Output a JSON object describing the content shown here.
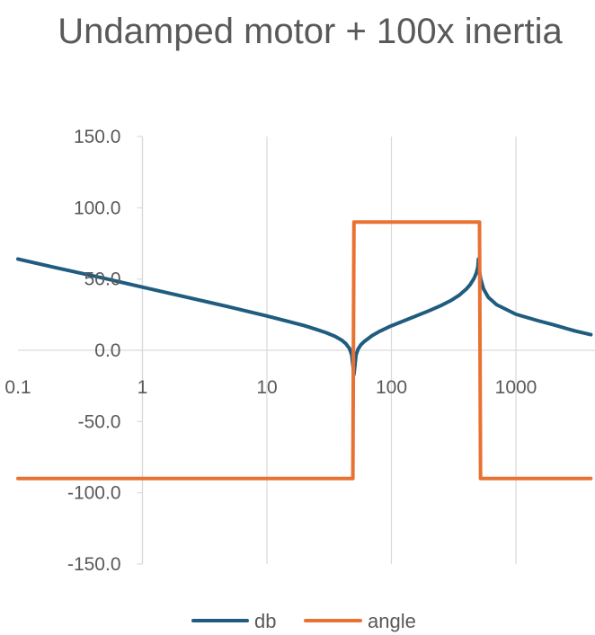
{
  "chart_data": {
    "type": "line",
    "title": "Undamped motor + 100x inertia",
    "xlabel": "",
    "ylabel": "",
    "x_scale": "log",
    "xlim": [
      0.1,
      4000
    ],
    "ylim": [
      -150,
      150
    ],
    "x_ticks": [
      "0.1",
      "1",
      "10",
      "100",
      "1000"
    ],
    "y_ticks": [
      "150.0",
      "100.0",
      "50.0",
      "0.0",
      "-50.0",
      "-100.0",
      "-150.0"
    ],
    "grid": "vertical",
    "legend_position": "bottom",
    "series": [
      {
        "name": "db",
        "color": "#1f5c7f",
        "x": [
          0.1,
          0.2,
          0.5,
          1,
          2,
          5,
          10,
          15,
          20,
          25,
          30,
          35,
          40,
          43,
          46,
          48,
          50,
          52,
          54,
          57,
          60,
          70,
          80,
          100,
          150,
          200,
          250,
          300,
          350,
          400,
          430,
          460,
          480,
          495,
          500,
          505,
          520,
          550,
          600,
          700,
          1000,
          1500,
          2000,
          3000,
          4000
        ],
        "y": [
          64,
          58,
          50.4,
          44.3,
          38.3,
          30.4,
          24.1,
          20.1,
          17.3,
          14.6,
          12.3,
          9.9,
          7.0,
          4.7,
          1.3,
          -3.3,
          -17,
          -3.2,
          0.9,
          4.0,
          5.9,
          10.3,
          13.2,
          17.2,
          23.3,
          27.7,
          31.4,
          34.9,
          38.6,
          43.0,
          46.2,
          50.3,
          54.0,
          58.5,
          64,
          57.8,
          50.4,
          43.0,
          37.2,
          32.0,
          25.3,
          20.8,
          17.9,
          13.5,
          11
        ]
      },
      {
        "name": "angle",
        "color": "#e97132",
        "x": [
          0.1,
          49,
          50,
          510,
          520,
          4000
        ],
        "y": [
          -90,
          -90,
          90,
          90,
          -90,
          -90
        ]
      }
    ]
  }
}
